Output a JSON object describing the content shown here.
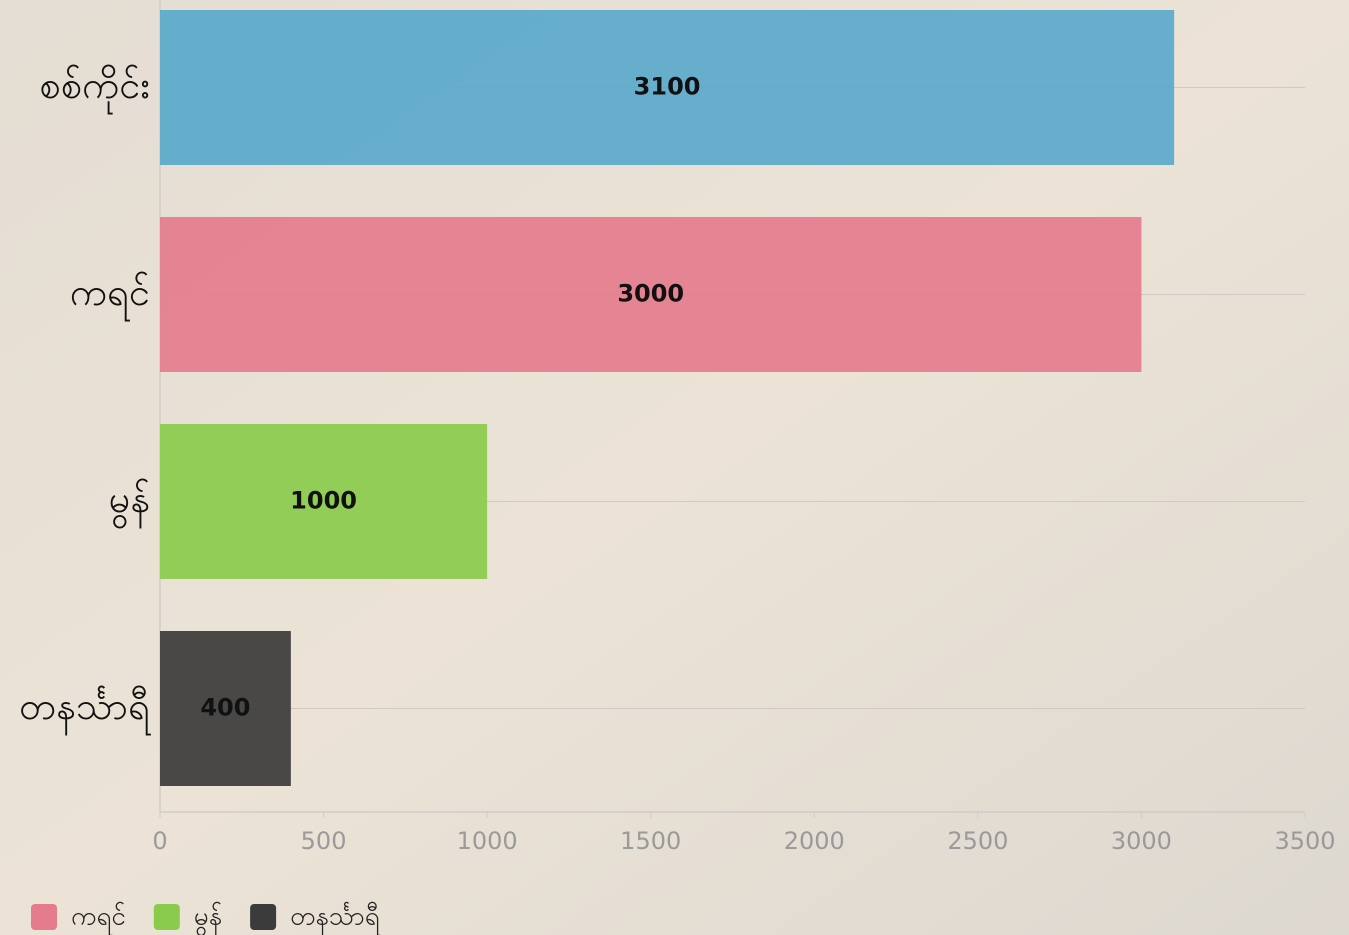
{
  "chart_data": {
    "type": "bar",
    "orientation": "horizontal",
    "categories": [
      "စစ်ကိုင်း",
      "ကရင်",
      "မွန်",
      "တနင်္သာရီ"
    ],
    "values": [
      3100,
      3000,
      1000,
      400
    ],
    "colors": [
      "#5aa9ca",
      "#e47c8d",
      "#8acb4c",
      "#3b3b3b"
    ],
    "xlim": [
      0,
      3500
    ],
    "xticks": [
      0,
      500,
      1000,
      1500,
      2000,
      2500,
      3000,
      3500
    ],
    "grid": true,
    "legend_position": "bottom",
    "legend": [
      {
        "name": "ကရင်",
        "color": "#e47c8d"
      },
      {
        "name": "မွန်",
        "color": "#8acb4c"
      },
      {
        "name": "တနင်္သာရီ",
        "color": "#3b3b3b"
      }
    ]
  }
}
